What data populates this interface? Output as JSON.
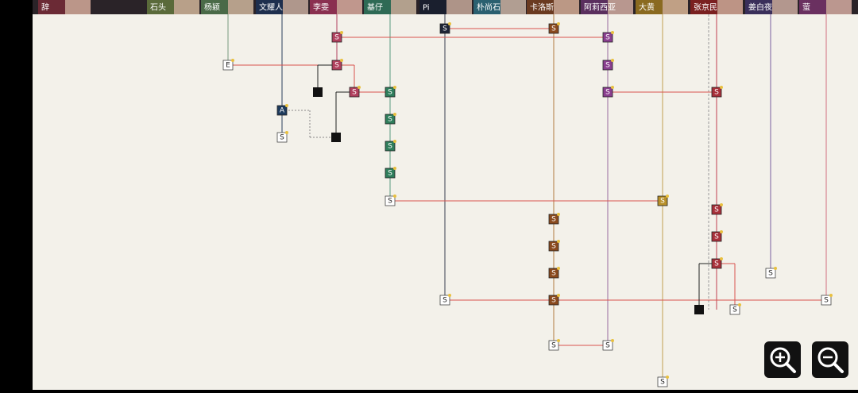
{
  "characters": [
    "辞",
    "石头",
    "杨颖",
    "文耀人",
    "李雯",
    "基仔",
    "Pi",
    "朴尚石",
    "卡洛斯",
    "阿莉西亚",
    "大黄",
    "张京民",
    "姜白夜",
    "萤"
  ],
  "nodes": [
    {
      "label": "S",
      "color": "#1e2536"
    },
    {
      "label": "S",
      "color": "#8a4a1e"
    },
    {
      "label": "S",
      "color": "#b0405e"
    },
    {
      "label": "S",
      "color": "#8a3f8f"
    },
    {
      "label": "E",
      "color": "#ffffff"
    },
    {
      "label": "S",
      "color": "#b0405e"
    },
    {
      "label": "S",
      "color": "#8a3f8f"
    },
    {
      "label": "S",
      "color": "#b0405e"
    },
    {
      "label": "S",
      "color": "#2e7d5b"
    },
    {
      "label": "S",
      "color": "#8a3f8f"
    },
    {
      "label": "S",
      "color": "#a8303a"
    },
    {
      "label": "A",
      "color": "#1d3a5c"
    },
    {
      "label": "S",
      "color": "#2e7d5b"
    },
    {
      "label": "S",
      "color": "#ffffff"
    },
    {
      "label": "S",
      "color": "#2e7d5b"
    },
    {
      "label": "S",
      "color": "#2e7d5b"
    },
    {
      "label": "S",
      "color": "#ffffff"
    },
    {
      "label": "S",
      "color": "#b8902a"
    },
    {
      "label": "S",
      "color": "#8a4a1e"
    },
    {
      "label": "S",
      "color": "#a8303a"
    },
    {
      "label": "S",
      "color": "#a8303a"
    },
    {
      "label": "S",
      "color": "#8a4a1e"
    },
    {
      "label": "S",
      "color": "#a8303a"
    },
    {
      "label": "S",
      "color": "#8a4a1e"
    },
    {
      "label": "S",
      "color": "#ffffff"
    },
    {
      "label": "S",
      "color": "#ffffff"
    },
    {
      "label": "S",
      "color": "#8a4a1e"
    },
    {
      "label": "S",
      "color": "#ffffff"
    },
    {
      "label": "S",
      "color": "#ffffff"
    },
    {
      "label": "S",
      "color": "#ffffff"
    },
    {
      "label": "S",
      "color": "#ffffff"
    },
    {
      "label": "S",
      "color": "#ffffff"
    }
  ]
}
